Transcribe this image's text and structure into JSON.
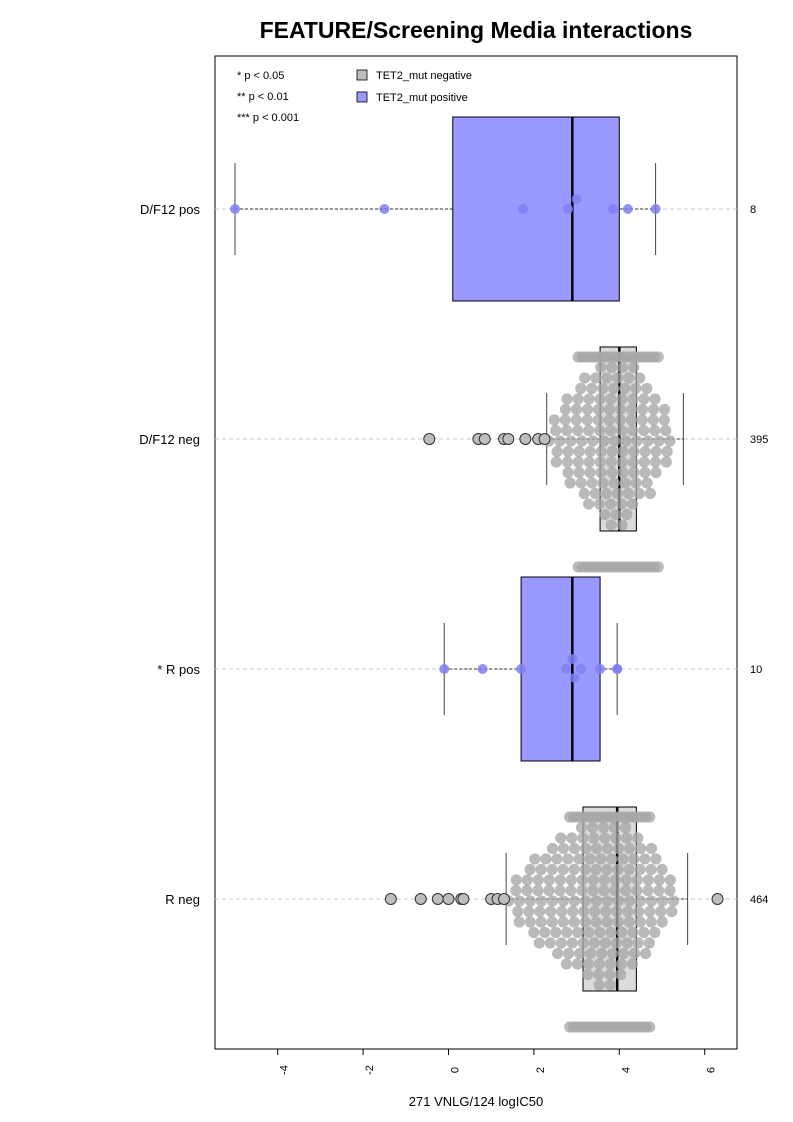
{
  "chart_data": {
    "type": "boxplot",
    "title": "FEATURE/Screening Media interactions",
    "xlabel": "271 VNLG/124 logIC50",
    "xlim": [
      -5.45,
      6.75
    ],
    "x_ticks": [
      -4,
      -2,
      0,
      2,
      4,
      6
    ],
    "x_tick_labels": [
      "-4",
      "-2",
      "0",
      "2",
      "4",
      "6"
    ],
    "grid": "dashed horizontal at each group",
    "legend_position": "top-left",
    "significance_legend": [
      "* p < 0.05",
      "** p < 0.01",
      "*** p < 0.001"
    ],
    "legend": [
      {
        "label": "TET2_mut negative",
        "color": "#bebebe"
      },
      {
        "label": "TET2_mut positive",
        "color": "#9999ff"
      }
    ],
    "colors": {
      "negative_fill": "#bebebe",
      "negative_point": "#a6a6a6",
      "positive_fill": "#9999ff",
      "positive_point": "#7f7ff2"
    },
    "groups": [
      {
        "label": "D/F12 pos",
        "group": "positive",
        "n": "8",
        "whisker_low": -5.0,
        "q1": 0.1,
        "median": 2.9,
        "q3": 4.0,
        "whisker_high": 4.85,
        "points": [
          -5.0,
          -1.5,
          1.75,
          2.8,
          3.0,
          3.85,
          4.2,
          4.85
        ],
        "outliers": []
      },
      {
        "label": "D/F12 neg",
        "group": "negative",
        "n": "395",
        "whisker_low": 2.3,
        "q1": 3.55,
        "median": 4.0,
        "q3": 4.4,
        "whisker_high": 5.5,
        "points": [],
        "outliers": [
          -0.45,
          0.7,
          0.85,
          1.3,
          1.4,
          1.8,
          2.1,
          2.25
        ]
      },
      {
        "label": "* R pos",
        "group": "positive",
        "n": "10",
        "whisker_low": -0.1,
        "q1": 1.7,
        "median": 2.9,
        "q3": 3.55,
        "whisker_high": 3.95,
        "points": [
          -0.1,
          0.8,
          1.7,
          2.75,
          2.9,
          2.95,
          3.1,
          3.55,
          3.95,
          3.95
        ],
        "outliers": []
      },
      {
        "label": "R neg",
        "group": "negative",
        "n": "464",
        "whisker_low": 1.35,
        "q1": 3.15,
        "median": 3.95,
        "q3": 4.4,
        "whisker_high": 5.6,
        "points": [],
        "outliers": [
          -1.35,
          -0.65,
          -0.25,
          0.0,
          0.3,
          0.35,
          1.0,
          1.15,
          1.3,
          6.3
        ]
      }
    ]
  }
}
